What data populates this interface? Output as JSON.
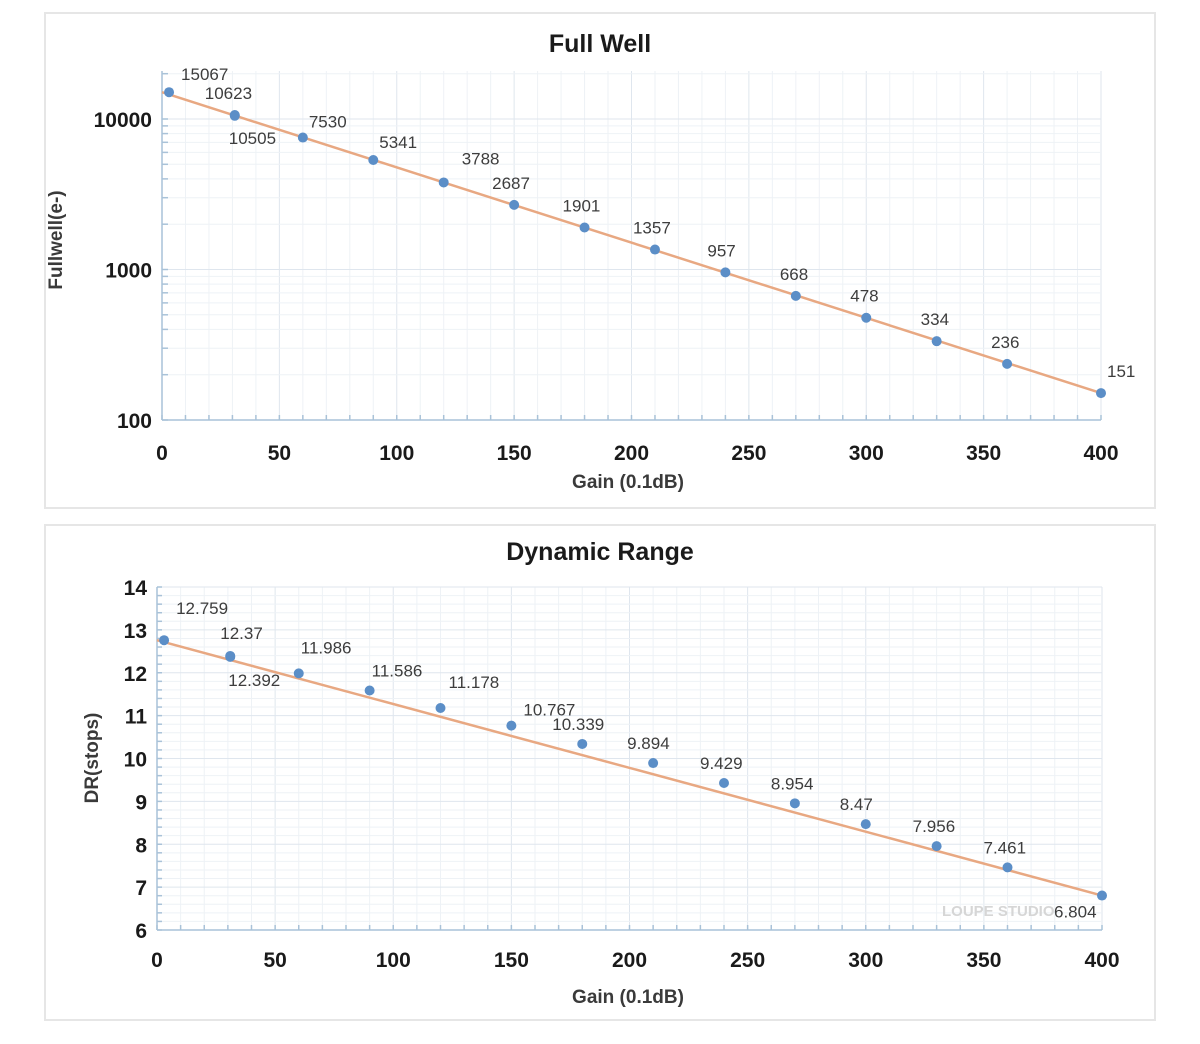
{
  "chart_data": [
    {
      "type": "scatter",
      "title": "Full Well",
      "xlabel": "Gain (0.1dB)",
      "ylabel": "Fullwell(e-)",
      "xlim": [
        0,
        400
      ],
      "ylim": [
        100,
        20000
      ],
      "yscale": "log",
      "grid": true,
      "legend": "none",
      "x_ticks": [
        "0",
        "50",
        "100",
        "150",
        "200",
        "250",
        "300",
        "350",
        "400"
      ],
      "y_ticks": [
        "100",
        "1000",
        "10000"
      ],
      "trendline": true,
      "series": [
        {
          "name": "Full Well",
          "x": [
            3,
            31,
            31,
            60,
            90,
            120,
            150,
            180,
            210,
            240,
            270,
            300,
            330,
            360,
            400
          ],
          "y": [
            15067,
            10623,
            10505,
            7530,
            5341,
            3788,
            2687,
            1901,
            1357,
            957,
            668,
            478,
            334,
            236,
            151
          ],
          "labels": [
            "15067",
            "10623",
            "10505",
            "7530",
            "5341",
            "3788",
            "2687",
            "1901",
            "1357",
            "957",
            "668",
            "478",
            "334",
            "236",
            "151"
          ]
        }
      ],
      "colors": {
        "marker": "#5b8ec7",
        "trendline": "#e8a882"
      }
    },
    {
      "type": "scatter",
      "title": "Dynamic Range",
      "xlabel": "Gain (0.1dB)",
      "ylabel": "DR(stops)",
      "xlim": [
        0,
        400
      ],
      "ylim": [
        6,
        14
      ],
      "yscale": "linear",
      "grid": true,
      "legend": "none",
      "x_ticks": [
        "0",
        "50",
        "100",
        "150",
        "200",
        "250",
        "300",
        "350",
        "400"
      ],
      "y_ticks": [
        "6",
        "7",
        "8",
        "9",
        "10",
        "11",
        "12",
        "13",
        "14"
      ],
      "trendline": true,
      "series": [
        {
          "name": "Dynamic Range",
          "x": [
            3,
            31,
            31,
            60,
            90,
            120,
            150,
            180,
            210,
            240,
            270,
            300,
            330,
            360,
            400
          ],
          "y": [
            12.759,
            12.37,
            12.392,
            11.986,
            11.586,
            11.178,
            10.767,
            10.339,
            9.894,
            9.429,
            8.954,
            8.47,
            7.956,
            7.461,
            6.804
          ],
          "labels": [
            "12.759",
            "12.37",
            "12.392",
            "11.986",
            "11.586",
            "11.178",
            "10.767",
            "10.339",
            "9.894",
            "9.429",
            "8.954",
            "8.47",
            "7.956",
            "7.461",
            "6.804"
          ]
        }
      ],
      "colors": {
        "marker": "#5b8ec7",
        "trendline": "#e8a882"
      }
    }
  ],
  "watermark": "LOUPE STUDIO"
}
